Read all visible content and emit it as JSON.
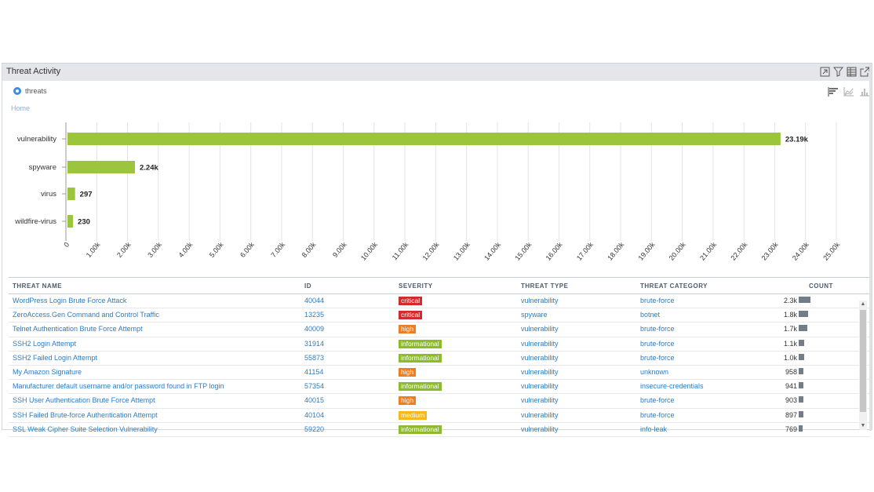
{
  "panel": {
    "title": "Threat Activity",
    "radio_label": "threats",
    "breadcrumb": "Home"
  },
  "colors": {
    "bar": "#9bc53d",
    "critical": "#d12b2b",
    "high": "#ef7d21",
    "informational": "#8dbb2b",
    "medium": "#f5b91c",
    "count_bar": "#737c87"
  },
  "chart_data": {
    "type": "bar",
    "orientation": "horizontal",
    "categories": [
      "vulnerability",
      "spyware",
      "virus",
      "wildfire-virus"
    ],
    "values": [
      23190,
      2240,
      297,
      230
    ],
    "value_labels": [
      "23.19k",
      "2.24k",
      "297",
      "230"
    ],
    "xlim": [
      0,
      25000
    ],
    "x_ticks": [
      "0",
      "1.00k",
      "2.00k",
      "3.00k",
      "4.00k",
      "5.00k",
      "6.00k",
      "7.00k",
      "8.00k",
      "9.00k",
      "10.00k",
      "11.00k",
      "12.00k",
      "13.00k",
      "14.00k",
      "15.00k",
      "16.00k",
      "17.00k",
      "18.00k",
      "19.00k",
      "20.00k",
      "21.00k",
      "22.00k",
      "23.00k",
      "24.00k",
      "25.00k"
    ],
    "grid": true
  },
  "table": {
    "headers": {
      "name": "THREAT NAME",
      "id": "ID",
      "severity": "SEVERITY",
      "type": "THREAT TYPE",
      "category": "THREAT CATEGORY",
      "count": "COUNT"
    },
    "rows": [
      {
        "name": "WordPress Login Brute Force Attack",
        "id": "40044",
        "severity": "critical",
        "type": "vulnerability",
        "category": "brute-force",
        "count": "2.3k",
        "count_value": 2300
      },
      {
        "name": "ZeroAccess.Gen Command and Control Traffic",
        "id": "13235",
        "severity": "critical",
        "type": "spyware",
        "category": "botnet",
        "count": "1.8k",
        "count_value": 1800
      },
      {
        "name": "Telnet Authentication Brute Force Attempt",
        "id": "40009",
        "severity": "high",
        "type": "vulnerability",
        "category": "brute-force",
        "count": "1.7k",
        "count_value": 1700
      },
      {
        "name": "SSH2 Login Attempt",
        "id": "31914",
        "severity": "informational",
        "type": "vulnerability",
        "category": "brute-force",
        "count": "1.1k",
        "count_value": 1100
      },
      {
        "name": "SSH2 Failed Login Attempt",
        "id": "55873",
        "severity": "informational",
        "type": "vulnerability",
        "category": "brute-force",
        "count": "1.0k",
        "count_value": 1000
      },
      {
        "name": "My Amazon Signature",
        "id": "41154",
        "severity": "high",
        "type": "vulnerability",
        "category": "unknown",
        "count": "958",
        "count_value": 958
      },
      {
        "name": "Manufacturer default username and/or password found in FTP login",
        "id": "57354",
        "severity": "informational",
        "type": "vulnerability",
        "category": "insecure-credentials",
        "count": "941",
        "count_value": 941
      },
      {
        "name": "SSH User Authentication Brute Force Attempt",
        "id": "40015",
        "severity": "high",
        "type": "vulnerability",
        "category": "brute-force",
        "count": "903",
        "count_value": 903
      },
      {
        "name": "SSH Failed Brute-force Authentication Attempt",
        "id": "40104",
        "severity": "medium",
        "type": "vulnerability",
        "category": "brute-force",
        "count": "897",
        "count_value": 897
      },
      {
        "name": "SSL Weak Cipher Suite Selection Vulnerability",
        "id": "59220",
        "severity": "informational",
        "type": "vulnerability",
        "category": "info-leak",
        "count": "769",
        "count_value": 769
      }
    ]
  }
}
